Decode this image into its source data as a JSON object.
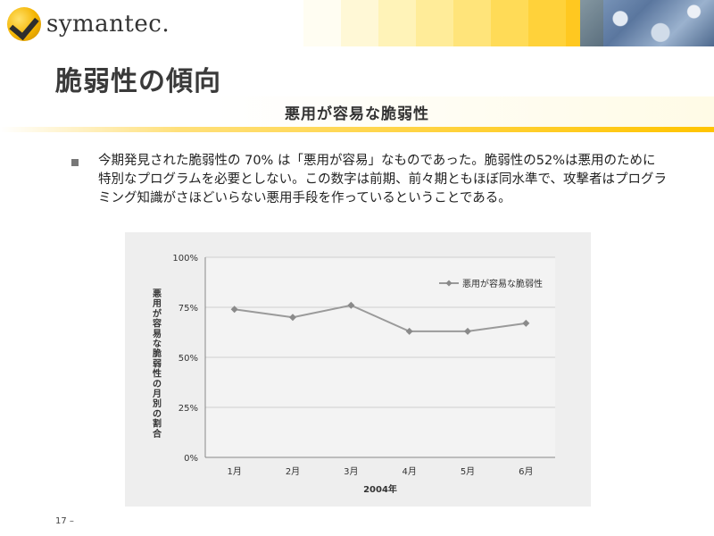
{
  "brand": {
    "name": "symantec",
    "mark": "."
  },
  "slide": {
    "title": "脆弱性の傾向",
    "subtitle": "悪用が容易な脆弱性",
    "body_lines": [
      "今期発見された脆弱性の 70% は「悪用が容易」なものであった。脆弱性の52%は悪用のために",
      "特別なプログラムを必要としない。この数字は前期、前々期ともほぼ同水準で、攻撃者はプログラ",
      "ミング知識がさほどいらない悪用手段を作っているということである。"
    ],
    "page_number": "17 –"
  },
  "colors": {
    "accent_yellow": "#ffc400",
    "series_line": "#9a9a9a",
    "chart_bg": "#eeeeee"
  },
  "chart_data": {
    "type": "line",
    "categories": [
      "1月",
      "2月",
      "3月",
      "4月",
      "5月",
      "6月"
    ],
    "series": [
      {
        "name": "悪用が容易な脆弱性",
        "values": [
          74,
          70,
          76,
          63,
          63,
          67
        ]
      }
    ],
    "xlabel": "2004年",
    "ylabel": "悪用が容易な脆弱性の月別の割合",
    "ylim": [
      0,
      100
    ],
    "yticks": [
      "0%",
      "25%",
      "50%",
      "75%",
      "100%"
    ],
    "grid": true,
    "legend": "top-right"
  }
}
